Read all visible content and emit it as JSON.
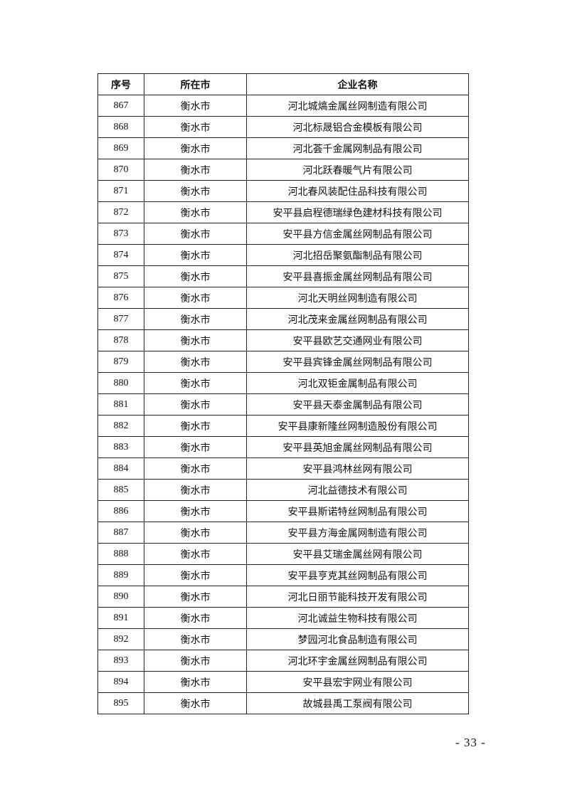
{
  "table": {
    "headers": [
      "序号",
      "所在市",
      "企业名称"
    ],
    "rows": [
      [
        "867",
        "衡水市",
        "河北城熇金属丝网制造有限公司"
      ],
      [
        "868",
        "衡水市",
        "河北标晟铝合金模板有限公司"
      ],
      [
        "869",
        "衡水市",
        "河北荟千金属网制品有限公司"
      ],
      [
        "870",
        "衡水市",
        "河北跃春暖气片有限公司"
      ],
      [
        "871",
        "衡水市",
        "河北春风装配住品科技有限公司"
      ],
      [
        "872",
        "衡水市",
        "安平县启程德瑞绿色建材科技有限公司"
      ],
      [
        "873",
        "衡水市",
        "安平县方信金属丝网制品有限公司"
      ],
      [
        "874",
        "衡水市",
        "河北招岳聚氨酯制品有限公司"
      ],
      [
        "875",
        "衡水市",
        "安平县喜振金属丝网制品有限公司"
      ],
      [
        "876",
        "衡水市",
        "河北天明丝网制造有限公司"
      ],
      [
        "877",
        "衡水市",
        "河北茂来金属丝网制品有限公司"
      ],
      [
        "878",
        "衡水市",
        "安平县欧艺交通网业有限公司"
      ],
      [
        "879",
        "衡水市",
        "安平县宾锋金属丝网制品有限公司"
      ],
      [
        "880",
        "衡水市",
        "河北双钜金属制品有限公司"
      ],
      [
        "881",
        "衡水市",
        "安平县天泰金属制品有限公司"
      ],
      [
        "882",
        "衡水市",
        "安平县康新隆丝网制造股份有限公司"
      ],
      [
        "883",
        "衡水市",
        "安平县英旭金属丝网制品有限公司"
      ],
      [
        "884",
        "衡水市",
        "安平县鸿林丝网有限公司"
      ],
      [
        "885",
        "衡水市",
        "河北益德技术有限公司"
      ],
      [
        "886",
        "衡水市",
        "安平县斯诺特丝网制品有限公司"
      ],
      [
        "887",
        "衡水市",
        "安平县方海金属网制造有限公司"
      ],
      [
        "888",
        "衡水市",
        "安平县艾瑞金属丝网有限公司"
      ],
      [
        "889",
        "衡水市",
        "安平县亨克其丝网制品有限公司"
      ],
      [
        "890",
        "衡水市",
        "河北日丽节能科技开发有限公司"
      ],
      [
        "891",
        "衡水市",
        "河北诚益生物科技有限公司"
      ],
      [
        "892",
        "衡水市",
        "梦园河北食品制造有限公司"
      ],
      [
        "893",
        "衡水市",
        "河北环宇金属丝网制品有限公司"
      ],
      [
        "894",
        "衡水市",
        "安平县宏宇网业有限公司"
      ],
      [
        "895",
        "衡水市",
        "故城县禹工泵阀有限公司"
      ]
    ]
  },
  "footer": {
    "page_number": "- 33 -"
  }
}
